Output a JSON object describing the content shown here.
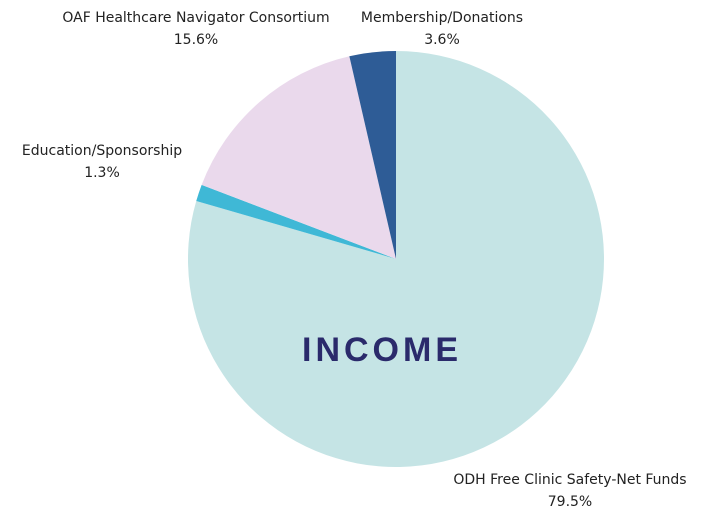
{
  "chart_data": {
    "type": "pie",
    "center_label": "INCOME",
    "categories": [
      "ODH Free Clinic Safety-Net Funds",
      "Education/Sponsorship",
      "OAF Healthcare Navigator Consortium",
      "Membership/Donations"
    ],
    "values": [
      79.5,
      1.3,
      15.6,
      3.6
    ],
    "value_labels": [
      "79.5%",
      "1.3%",
      "15.6%",
      "3.6%"
    ],
    "colors": [
      "#c5e4e5",
      "#3fb8d6",
      "#ead9ec",
      "#2e5c96"
    ]
  }
}
